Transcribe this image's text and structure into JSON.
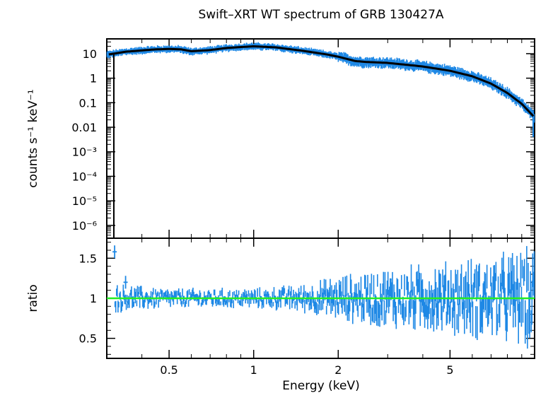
{
  "chart_data": [
    {
      "type": "scatter",
      "panel": "spectrum",
      "title": "Swift–XRT WT spectrum of GRB 130427A",
      "ylabel": "counts s⁻¹ keV⁻¹",
      "xscale": "log",
      "yscale": "log",
      "xlim": [
        0.3,
        10
      ],
      "ylim": [
        3e-07,
        40
      ],
      "yticks": [
        {
          "value": 10,
          "label": "10"
        },
        {
          "value": 1,
          "label": "1"
        },
        {
          "value": 0.1,
          "label": "0.1"
        },
        {
          "value": 0.01,
          "label": "0.01"
        },
        {
          "value": 0.001,
          "label": "10⁻³"
        },
        {
          "value": 0.0001,
          "label": "10⁻⁴"
        },
        {
          "value": 1e-05,
          "label": "10⁻⁵"
        },
        {
          "value": 1e-06,
          "label": "10⁻⁶"
        }
      ],
      "series": [
        {
          "role": "data",
          "color": "#1e88e5",
          "points": [
            [
              0.3,
              9
            ],
            [
              0.35,
              12
            ],
            [
              0.4,
              13.5
            ],
            [
              0.45,
              15
            ],
            [
              0.5,
              15.5
            ],
            [
              0.55,
              15
            ],
            [
              0.6,
              12
            ],
            [
              0.7,
              14
            ],
            [
              0.8,
              17
            ],
            [
              1.0,
              20
            ],
            [
              1.2,
              18
            ],
            [
              1.5,
              13
            ],
            [
              1.8,
              9.5
            ],
            [
              2.0,
              7.5
            ],
            [
              2.3,
              4.8
            ],
            [
              2.5,
              4.5
            ],
            [
              3.0,
              4.2
            ],
            [
              4.0,
              3.0
            ],
            [
              5.0,
              2.0
            ],
            [
              6.0,
              1.2
            ],
            [
              7.0,
              0.6
            ],
            [
              8.0,
              0.25
            ],
            [
              9.0,
              0.09
            ],
            [
              10.0,
              0.025
            ]
          ]
        },
        {
          "role": "model",
          "color": "#000000",
          "points": [
            [
              0.3,
              9
            ],
            [
              0.35,
              12
            ],
            [
              0.4,
              13.5
            ],
            [
              0.45,
              15
            ],
            [
              0.5,
              15.5
            ],
            [
              0.55,
              15
            ],
            [
              0.6,
              12.5
            ],
            [
              0.7,
              14
            ],
            [
              0.8,
              17
            ],
            [
              1.0,
              20
            ],
            [
              1.2,
              18
            ],
            [
              1.5,
              13
            ],
            [
              1.8,
              9.5
            ],
            [
              2.0,
              7.5
            ],
            [
              2.3,
              5.0
            ],
            [
              2.5,
              4.6
            ],
            [
              3.0,
              4.2
            ],
            [
              4.0,
              3.0
            ],
            [
              5.0,
              2.0
            ],
            [
              6.0,
              1.2
            ],
            [
              7.0,
              0.6
            ],
            [
              8.0,
              0.25
            ],
            [
              9.0,
              0.09
            ],
            [
              10.0,
              0.025
            ]
          ]
        }
      ]
    },
    {
      "type": "scatter",
      "panel": "ratio",
      "xlabel": "Energy (keV)",
      "ylabel": "ratio",
      "xscale": "log",
      "xlim": [
        0.3,
        10
      ],
      "ylim": [
        0.25,
        1.75
      ],
      "xticks": [
        {
          "value": 0.5,
          "label": "0.5"
        },
        {
          "value": 1,
          "label": "1"
        },
        {
          "value": 2,
          "label": "2"
        },
        {
          "value": 5,
          "label": "5"
        }
      ],
      "yticks": [
        {
          "value": 0.5,
          "label": "0.5"
        },
        {
          "value": 1,
          "label": "1"
        },
        {
          "value": 1.5,
          "label": "1.5"
        }
      ],
      "reference_line": {
        "value": 1,
        "color": "#22ee22"
      },
      "data_color": "#1e88e5",
      "scatter_vs_energy": [
        [
          0.3,
          0.15
        ],
        [
          0.5,
          0.1
        ],
        [
          1.0,
          0.1
        ],
        [
          1.5,
          0.14
        ],
        [
          2.0,
          0.22
        ],
        [
          3.0,
          0.3
        ],
        [
          5.0,
          0.36
        ],
        [
          7.0,
          0.42
        ],
        [
          10.0,
          0.5
        ]
      ],
      "highlight_points": [
        [
          0.32,
          1.58
        ],
        [
          0.35,
          1.2
        ]
      ]
    }
  ]
}
